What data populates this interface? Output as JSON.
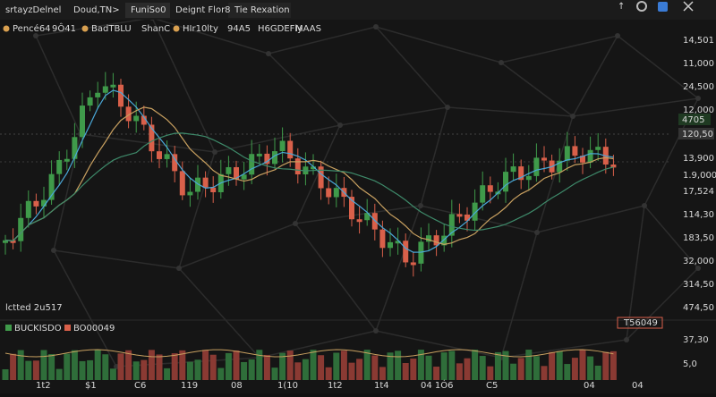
{
  "tabs": [
    "srtayzDelnel",
    "Doud,TN>",
    "FuniSo0",
    "Deignt Flor8",
    "Tie Rexation"
  ],
  "legend": [
    "Pencé64",
    "9Ô41",
    "BadTBLU",
    "ShanC",
    "HIr10lty",
    "94A5",
    "H6GDEFly",
    "MAAS"
  ],
  "price_labels": [
    "14,501",
    "11,000",
    "24,500",
    "12,000",
    "13,900",
    "1.9,000",
    "17,524",
    "114,30",
    "183,50",
    "32,000",
    "314,50",
    "474,50",
    "37,30",
    "5,0"
  ],
  "badges": [
    "4705",
    "120,50"
  ],
  "time_labels": [
    "1t2",
    "$1",
    "C6",
    "119",
    "08",
    "1(10",
    "1t2",
    "1t4",
    "04 1Ó6",
    "C5",
    "04",
    "04"
  ],
  "overlay_text": "lctted 2u517",
  "volume_legend": [
    "BUCKISDO",
    "BO00049"
  ],
  "volume_badge": "T56049"
}
